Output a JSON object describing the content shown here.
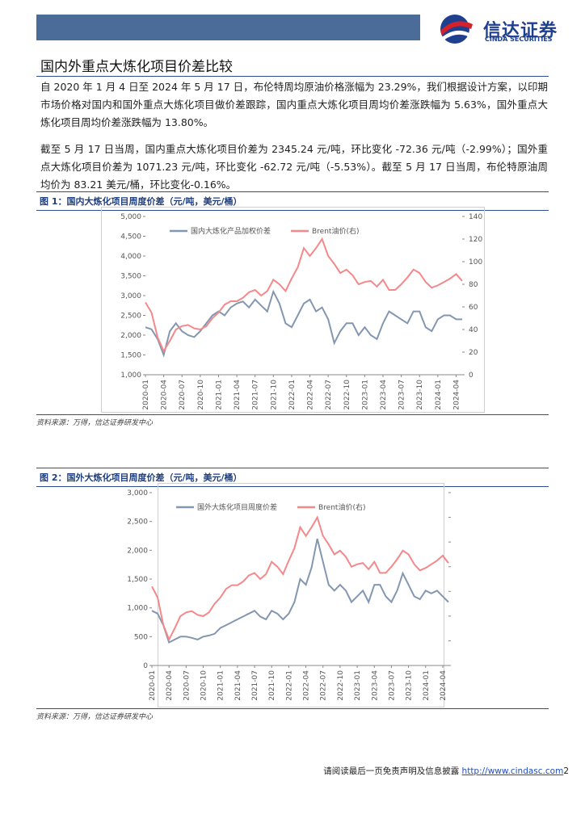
{
  "header": {
    "brand": "信达证券",
    "brand_en": "CINDA SECURITIES"
  },
  "title": "国内外重点大炼化项目价差比较",
  "paragraphs": [
    "自 2020 年 1 月 4 日至 2024 年 5 月 17 日，布伦特周均原油价格涨幅为 23.29%，我们根据设计方案，以印期市场价格对国内和国外重点大炼化项目做价差跟踪，国内重点大炼化项目周均价差涨跌幅为 5.63%，国外重点大炼化项目周均价差涨跌幅为 13.80%。",
    "截至 5 月 17 日当周，国内重点大炼化项目价差为 2345.24 元/吨，环比变化 -72.36 元/吨（-2.99%）；国外重点大炼化项目价差为 1071.23 元/吨，环比变化 -62.72 元/吨（-5.53%）。截至 5 月 17 日当周，布伦特原油周均价为 83.21 美元/桶，环比变化-0.16%。"
  ],
  "figures": [
    {
      "caption": "图 1：国内大炼化项目周度价差（元/吨，美元/桶）",
      "source": "资料来源：万得，信达证券研发中心"
    },
    {
      "caption": "图 2：国外大炼化项目周度价差（元/吨，美元/桶）",
      "source": "资料来源：万得，信达证券研发中心"
    }
  ],
  "chart_data": [
    {
      "type": "line",
      "categories": [
        "2020-01",
        null,
        null,
        "2020-04",
        null,
        null,
        "2020-07",
        null,
        null,
        "2020-10",
        null,
        null,
        "2021-01",
        null,
        null,
        "2021-04",
        null,
        null,
        "2021-07",
        null,
        null,
        "2021-10",
        null,
        null,
        "2022-01",
        null,
        null,
        "2022-04",
        null,
        null,
        "2022-07",
        null,
        null,
        "2022-10",
        null,
        null,
        "2023-01",
        null,
        null,
        "2023-04",
        null,
        null,
        "2023-07",
        null,
        null,
        "2023-10",
        null,
        null,
        "2024-01",
        null,
        null,
        "2024-04",
        null
      ],
      "ylim": [
        1000,
        5000
      ],
      "yticks": [
        {
          "value": 1000,
          "label": "1,000"
        },
        {
          "value": 1500,
          "label": "1,500"
        },
        {
          "value": 2000,
          "label": "2,000"
        },
        {
          "value": 2500,
          "label": "2,500"
        },
        {
          "value": 3000,
          "label": "3,000"
        },
        {
          "value": 3500,
          "label": "3,500"
        },
        {
          "value": 4000,
          "label": "4,000"
        },
        {
          "value": 4500,
          "label": "4,500"
        },
        {
          "value": 5000,
          "label": "5,000"
        }
      ],
      "y2lim": [
        0,
        140
      ],
      "y2ticks": [
        0,
        20,
        40,
        60,
        80,
        100,
        120,
        140
      ],
      "series": [
        {
          "name": "国内大炼化产品加权价差",
          "color": "#8497b0",
          "values": [
            2200,
            2150,
            1900,
            1500,
            2100,
            2300,
            2100,
            2000,
            1950,
            2100,
            2300,
            2500,
            2600,
            2500,
            2700,
            2800,
            2850,
            2700,
            2900,
            2750,
            2600,
            3100,
            2800,
            2300,
            2200,
            2500,
            2800,
            2900,
            2600,
            2700,
            2400,
            1800,
            2100,
            2300,
            2300,
            2000,
            2200,
            2000,
            1900,
            2300,
            2600,
            2500,
            2400,
            2300,
            2600,
            2600,
            2200,
            2100,
            2400,
            2500,
            2500,
            2400,
            2400
          ]
        },
        {
          "name": "Brent油价(右)",
          "color": "#f4888a",
          "axis": "y2",
          "values": [
            64,
            55,
            33,
            21,
            30,
            40,
            43,
            44,
            41,
            40,
            43,
            50,
            55,
            62,
            65,
            65,
            68,
            73,
            75,
            70,
            74,
            84,
            80,
            74,
            85,
            95,
            112,
            105,
            112,
            120,
            105,
            98,
            90,
            93,
            88,
            80,
            82,
            83,
            78,
            84,
            75,
            75,
            80,
            86,
            93,
            90,
            82,
            77,
            79,
            82,
            85,
            89,
            83
          ]
        }
      ]
    },
    {
      "type": "line",
      "categories": [
        "2020-01",
        null,
        null,
        "2020-04",
        null,
        null,
        "2020-07",
        null,
        null,
        "2020-10",
        null,
        null,
        "2021-01",
        null,
        null,
        "2021-04",
        null,
        null,
        "2021-07",
        null,
        null,
        "2021-10",
        null,
        null,
        "2022-01",
        null,
        null,
        "2022-04",
        null,
        null,
        "2022-07",
        null,
        null,
        "2022-10",
        null,
        null,
        "2023-01",
        null,
        null,
        "2023-04",
        null,
        null,
        "2023-07",
        null,
        null,
        "2023-10",
        null,
        null,
        "2024-01",
        null,
        null,
        "2024-04",
        null
      ],
      "ylim": [
        0,
        3000
      ],
      "yticks": [
        0,
        500,
        {
          "value": 1000,
          "label": "1,000"
        },
        {
          "value": 1500,
          "label": "1,500"
        },
        {
          "value": 2000,
          "label": "2,000"
        },
        {
          "value": 2500,
          "label": "2,500"
        },
        {
          "value": 3000,
          "label": "3,000"
        }
      ],
      "y2lim": [
        0,
        140
      ],
      "y2ticks": [
        0,
        20,
        40,
        60,
        80,
        100,
        120,
        140
      ],
      "series": [
        {
          "name": "国外大炼化项目周度价差",
          "color": "#8497b0",
          "values": [
            950,
            900,
            700,
            400,
            450,
            500,
            500,
            480,
            450,
            500,
            520,
            550,
            650,
            700,
            750,
            800,
            850,
            900,
            950,
            850,
            800,
            950,
            900,
            800,
            900,
            1100,
            1500,
            1400,
            1700,
            2200,
            1800,
            1400,
            1300,
            1400,
            1300,
            1100,
            1200,
            1300,
            1100,
            1400,
            1400,
            1200,
            1100,
            1300,
            1600,
            1400,
            1200,
            1150,
            1300,
            1250,
            1300,
            1200,
            1100
          ]
        },
        {
          "name": "Brent油价(右)",
          "color": "#f4888a",
          "axis": "y2",
          "values": [
            64,
            55,
            33,
            21,
            30,
            40,
            43,
            44,
            41,
            40,
            43,
            50,
            55,
            62,
            65,
            65,
            68,
            73,
            75,
            70,
            74,
            84,
            80,
            74,
            85,
            95,
            112,
            105,
            112,
            120,
            105,
            98,
            90,
            93,
            88,
            80,
            82,
            83,
            78,
            84,
            75,
            75,
            80,
            86,
            93,
            90,
            82,
            77,
            79,
            82,
            85,
            89,
            83
          ]
        }
      ]
    }
  ],
  "footer": {
    "notice": "请阅读最后一页免责声明及信息披露",
    "url": "http://www.cindasc.com",
    "page": "2"
  }
}
